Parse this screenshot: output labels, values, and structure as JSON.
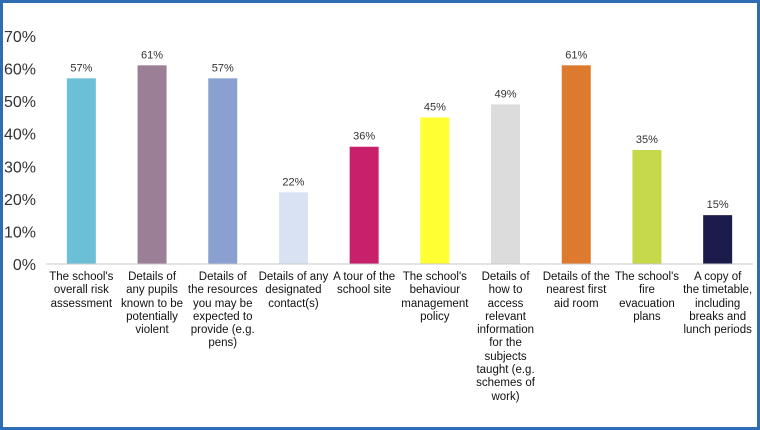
{
  "chart_data": {
    "type": "bar",
    "title": "",
    "xlabel": "",
    "ylabel": "",
    "ylim": [
      0,
      70
    ],
    "yticks": [
      "0%",
      "10%",
      "20%",
      "30%",
      "40%",
      "50%",
      "60%",
      "70%"
    ],
    "grid": false,
    "categories": [
      "The school's\noverall risk\nassessment",
      "Details of\nany pupils\nknown to be\npotentially\nviolent",
      "Details of\nthe resources\nyou may be\nexpected to\nprovide (e.g.\npens)",
      "Details of any\ndesignated\ncontact(s)",
      "A tour of the\nschool site",
      "The school's\nbehaviour\nmanagement\npolicy",
      "Details of\nhow to\naccess\nrelevant\ninformation\nfor the\nsubjects\ntaught (e.g.\nschemes of\nwork)",
      "Details of the\nnearest first\naid room",
      "The school's\nfire\nevacuation\nplans",
      "A copy of\nthe timetable,\nincluding\nbreaks and\nlunch periods"
    ],
    "values": [
      57,
      61,
      57,
      22,
      36,
      45,
      49,
      61,
      35,
      15
    ],
    "data_labels": [
      "57%",
      "61%",
      "57%",
      "22%",
      "36%",
      "45%",
      "49%",
      "61%",
      "35%",
      "15%"
    ],
    "colors": [
      "#6bbfd6",
      "#9b7f96",
      "#8aa0d0",
      "#d8e2f3",
      "#c8206b",
      "#ffff33",
      "#dcdcdc",
      "#dd7a2e",
      "#c5d94a",
      "#1c1c4c"
    ]
  }
}
